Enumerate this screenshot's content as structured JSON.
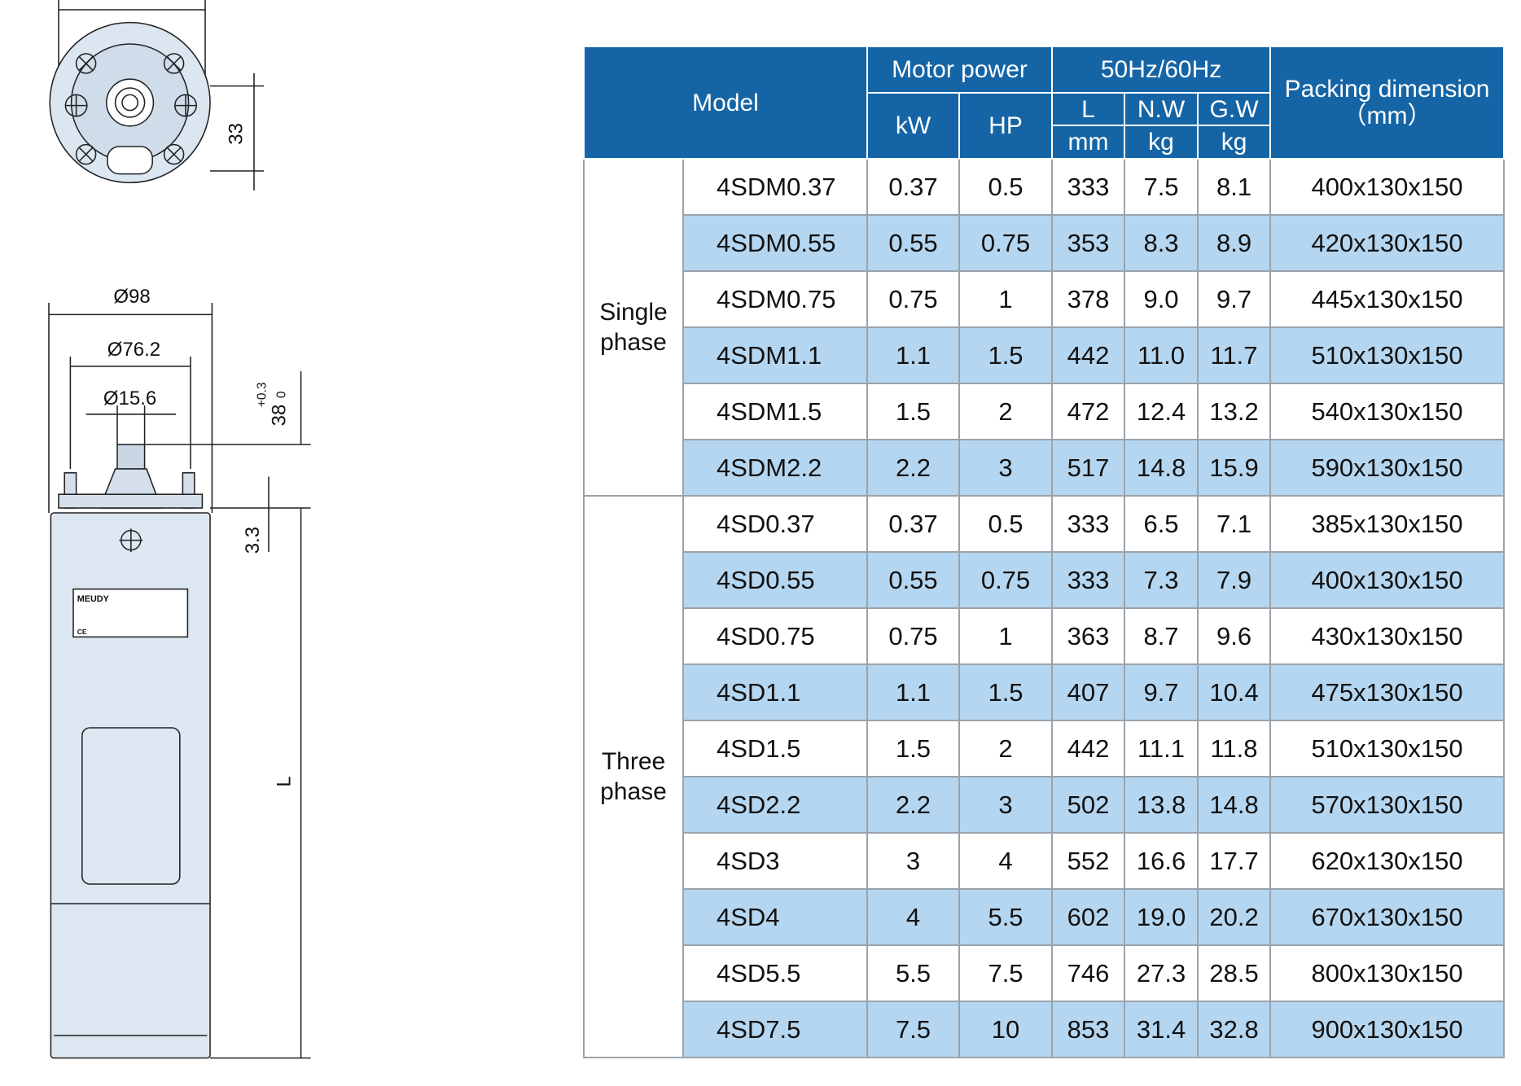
{
  "drawing": {
    "top_view": {
      "height_dim": "33"
    },
    "side_view": {
      "outer_diameter": "Ø98",
      "pilot_diameter": "Ø76.2",
      "shaft_diameter": "Ø15.6",
      "shaft_length": "38",
      "shaft_tol_upper": "+0.3",
      "shaft_tol_lower": "0",
      "flange_offset": "3.3",
      "length": "L",
      "nameplate_brand": "MEUDY",
      "nameplate_mark": "CE"
    }
  },
  "table": {
    "header": {
      "model": "Model",
      "motor_power": "Motor power",
      "kw": "kW",
      "hp": "HP",
      "frequency": "50Hz/60Hz",
      "length": "L",
      "length_unit": "mm",
      "net_weight": "N.W",
      "net_weight_unit": "kg",
      "gross_weight": "G.W",
      "gross_weight_unit": "kg",
      "packing": "Packing dimension",
      "packing_unit": "（mm）"
    },
    "groups": [
      {
        "label": "Single phase",
        "rows": [
          [
            "4SDM0.37",
            "0.37",
            "0.5",
            "333",
            "7.5",
            "8.1",
            "400x130x150"
          ],
          [
            "4SDM0.55",
            "0.55",
            "0.75",
            "353",
            "8.3",
            "8.9",
            "420x130x150"
          ],
          [
            "4SDM0.75",
            "0.75",
            "1",
            "378",
            "9.0",
            "9.7",
            "445x130x150"
          ],
          [
            "4SDM1.1",
            "1.1",
            "1.5",
            "442",
            "11.0",
            "11.7",
            "510x130x150"
          ],
          [
            "4SDM1.5",
            "1.5",
            "2",
            "472",
            "12.4",
            "13.2",
            "540x130x150"
          ],
          [
            "4SDM2.2",
            "2.2",
            "3",
            "517",
            "14.8",
            "15.9",
            "590x130x150"
          ]
        ]
      },
      {
        "label": "Three phase",
        "rows": [
          [
            "4SD0.37",
            "0.37",
            "0.5",
            "333",
            "6.5",
            "7.1",
            "385x130x150"
          ],
          [
            "4SD0.55",
            "0.55",
            "0.75",
            "333",
            "7.3",
            "7.9",
            "400x130x150"
          ],
          [
            "4SD0.75",
            "0.75",
            "1",
            "363",
            "8.7",
            "9.6",
            "430x130x150"
          ],
          [
            "4SD1.1",
            "1.1",
            "1.5",
            "407",
            "9.7",
            "10.4",
            "475x130x150"
          ],
          [
            "4SD1.5",
            "1.5",
            "2",
            "442",
            "11.1",
            "11.8",
            "510x130x150"
          ],
          [
            "4SD2.2",
            "2.2",
            "3",
            "502",
            "13.8",
            "14.8",
            "570x130x150"
          ],
          [
            "4SD3",
            "3",
            "4",
            "552",
            "16.6",
            "17.7",
            "620x130x150"
          ],
          [
            "4SD4",
            "4",
            "5.5",
            "602",
            "19.0",
            "20.2",
            "670x130x150"
          ],
          [
            "4SD5.5",
            "5.5",
            "7.5",
            "746",
            "27.3",
            "28.5",
            "800x130x150"
          ],
          [
            "4SD7.5",
            "7.5",
            "10",
            "853",
            "31.4",
            "32.8",
            "900x130x150"
          ]
        ]
      }
    ]
  }
}
